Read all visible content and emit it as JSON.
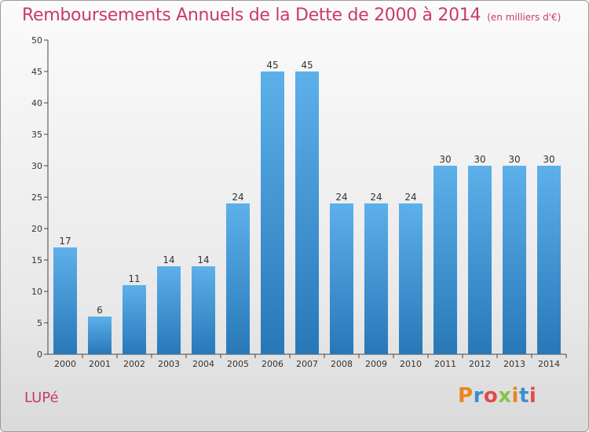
{
  "chart_data": {
    "type": "bar",
    "title": "Remboursements Annuels de la Dette de 2000 à 2014",
    "subtitle": "(en milliers d'€)",
    "categories": [
      "2000",
      "2001",
      "2002",
      "2003",
      "2004",
      "2005",
      "2006",
      "2007",
      "2008",
      "2009",
      "2010",
      "2011",
      "2012",
      "2013",
      "2014"
    ],
    "values": [
      17,
      6,
      11,
      14,
      14,
      24,
      45,
      45,
      24,
      24,
      24,
      30,
      30,
      30,
      30
    ],
    "xlabel": "",
    "ylabel": "",
    "ylim": [
      0,
      50
    ],
    "yticks": [
      0,
      5,
      10,
      15,
      20,
      25,
      30,
      35,
      40,
      45,
      50
    ],
    "grid": false,
    "legend": "none"
  },
  "footer": {
    "location": "LUPé",
    "logo_text": "Proxiti"
  },
  "colors": {
    "bar_light": "#5db0ea",
    "bar_dark": "#2878b8",
    "title": "#c83a6e",
    "logo_letters": [
      "#e8871e",
      "#3a8fd0",
      "#e24a4a",
      "#8bc34a",
      "#e8871e",
      "#3a8fd0",
      "#e24a4a"
    ]
  }
}
